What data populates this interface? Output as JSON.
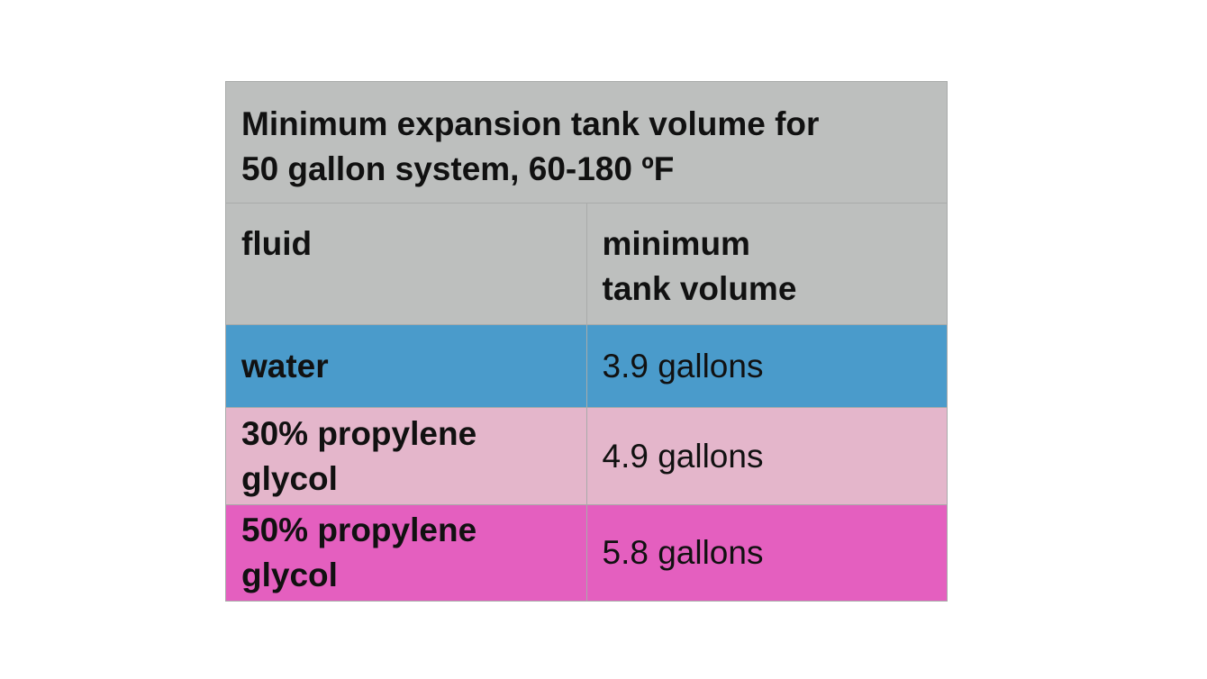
{
  "table": {
    "title_line1": "Minimum expansion tank volume for",
    "title_line2": "50 gallon system,  60-180 ºF",
    "headers": {
      "fluid": "fluid",
      "volume_line1": "minimum",
      "volume_line2": "tank volume"
    },
    "rows": [
      {
        "fluid": "water",
        "volume": "3.9 gallons",
        "color": "#4a9bcb"
      },
      {
        "fluid": "30% propylene glycol",
        "volume": "4.9 gallons",
        "color": "#e4b6cb"
      },
      {
        "fluid": "50% propylene glycol",
        "volume": "5.8 gallons",
        "color": "#e45fbf"
      }
    ],
    "header_color": "#bdbfbe"
  }
}
